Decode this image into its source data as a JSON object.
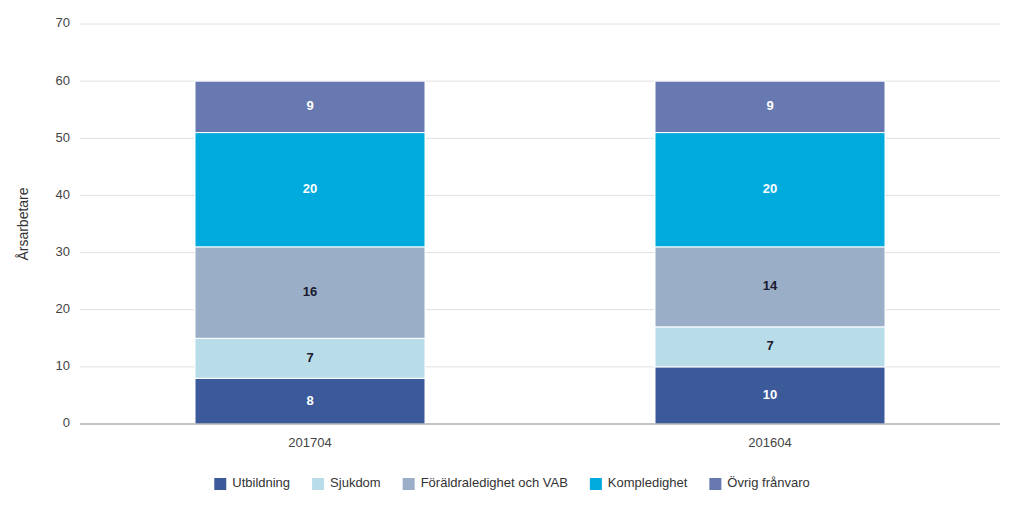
{
  "chart_data": {
    "type": "bar",
    "stacked": true,
    "data_labels": true,
    "grid": true,
    "legend": "bottom",
    "ylabel": "Årsarbetare",
    "categories": [
      "201704",
      "201604"
    ],
    "series": [
      {
        "name": "Utbildning",
        "values": [
          8,
          10
        ],
        "color": "#3C5A9A"
      },
      {
        "name": "Sjukdom",
        "values": [
          7,
          7
        ],
        "color": "#B8DDE8"
      },
      {
        "name": "Föräldraledighet och VAB",
        "values": [
          16,
          14
        ],
        "color": "#9AAEC8"
      },
      {
        "name": "Kompledighet",
        "values": [
          20,
          20
        ],
        "color": "#00AADD"
      },
      {
        "name": "Övrig frånvaro",
        "values": [
          9,
          9
        ],
        "color": "#6878B0"
      }
    ],
    "ylim": [
      0,
      70
    ],
    "yticks": [
      0,
      10,
      20,
      30,
      40,
      50,
      60,
      70
    ]
  }
}
